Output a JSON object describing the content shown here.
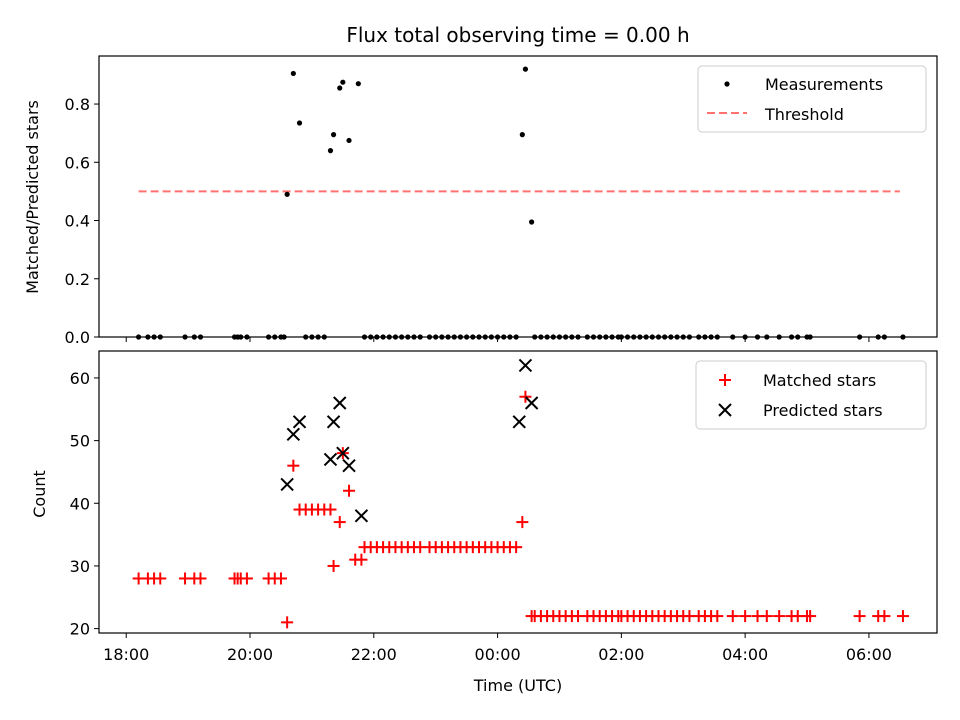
{
  "chart_data": [
    {
      "type": "scatter",
      "title": "Flux total observing time = 0.00 h",
      "ylabel": "Matched/Predicted stars",
      "xlabel": "",
      "xlim_hours": [
        17.56,
        31.1
      ],
      "ylim": [
        0,
        0.965
      ],
      "yticks": [
        0.0,
        0.2,
        0.4,
        0.6,
        0.8
      ],
      "ytick_labels": [
        "0.0",
        "0.2",
        "0.4",
        "0.6",
        "0.8"
      ],
      "legend_position": "top-right",
      "series": [
        {
          "name": "Measurements",
          "marker": "dot",
          "color": "#000000",
          "x": [
            18.2,
            18.35,
            18.45,
            18.55,
            18.95,
            19.1,
            19.2,
            19.75,
            19.8,
            19.85,
            19.95,
            20.3,
            20.4,
            20.5,
            20.55,
            20.6,
            20.7,
            20.8,
            20.9,
            21.0,
            21.1,
            21.2,
            21.3,
            21.35,
            21.45,
            21.5,
            21.6,
            21.75,
            21.85,
            21.95,
            22.05,
            22.15,
            22.25,
            22.35,
            22.45,
            22.55,
            22.65,
            22.75,
            22.9,
            23.0,
            23.1,
            23.2,
            23.3,
            23.4,
            23.5,
            23.6,
            23.7,
            23.8,
            23.9,
            24.0,
            24.1,
            24.2,
            24.3,
            24.4,
            24.45,
            24.55,
            24.6,
            24.7,
            24.8,
            24.9,
            25.0,
            25.1,
            25.2,
            25.3,
            25.45,
            25.55,
            25.65,
            25.75,
            25.85,
            25.95,
            26.0,
            26.1,
            26.2,
            26.3,
            26.4,
            26.5,
            26.6,
            26.7,
            26.8,
            26.9,
            27.0,
            27.1,
            27.25,
            27.35,
            27.45,
            27.55,
            27.8,
            28.0,
            28.2,
            28.35,
            28.55,
            28.75,
            28.85,
            29.0,
            29.05,
            29.85,
            30.15,
            30.25,
            30.55
          ],
          "y": [
            0,
            0,
            0,
            0,
            0,
            0,
            0,
            0,
            0,
            0,
            0,
            0,
            0,
            0,
            0,
            0.49,
            0.905,
            0.735,
            0,
            0,
            0,
            0,
            0.64,
            0.695,
            0.855,
            0.875,
            0.675,
            0.87,
            0,
            0,
            0,
            0,
            0,
            0,
            0,
            0,
            0,
            0,
            0,
            0,
            0,
            0,
            0,
            0,
            0,
            0,
            0,
            0,
            0,
            0,
            0,
            0,
            0,
            0.695,
            0.92,
            0.395,
            0,
            0,
            0,
            0,
            0,
            0,
            0,
            0,
            0,
            0,
            0,
            0,
            0,
            0,
            0,
            0,
            0,
            0,
            0,
            0,
            0,
            0,
            0,
            0,
            0,
            0,
            0,
            0,
            0,
            0,
            0,
            0,
            0,
            0,
            0,
            0,
            0,
            0,
            0,
            0,
            0,
            0,
            0
          ]
        },
        {
          "name": "Threshold",
          "marker": "dashed-line",
          "color": "#ff7070",
          "x": [
            18.2,
            30.5
          ],
          "y": [
            0.5,
            0.5
          ]
        }
      ]
    },
    {
      "type": "scatter",
      "title": "",
      "ylabel": "Count",
      "xlabel": "Time (UTC)",
      "xlim_hours": [
        17.56,
        31.1
      ],
      "ylim": [
        19.3,
        64.3
      ],
      "yticks": [
        20,
        30,
        40,
        50,
        60
      ],
      "ytick_labels": [
        "20",
        "30",
        "40",
        "50",
        "60"
      ],
      "xticks_hours": [
        18,
        20,
        22,
        24,
        26,
        28,
        30
      ],
      "xtick_labels": [
        "18:00",
        "20:00",
        "22:00",
        "00:00",
        "02:00",
        "04:00",
        "06:00"
      ],
      "legend_position": "top-right",
      "series": [
        {
          "name": "Matched stars",
          "marker": "plus",
          "color": "#ff0000",
          "x": [
            18.2,
            18.35,
            18.45,
            18.55,
            18.95,
            19.1,
            19.2,
            19.75,
            19.8,
            19.85,
            19.95,
            20.3,
            20.4,
            20.5,
            20.6,
            20.7,
            20.8,
            20.9,
            21.0,
            21.1,
            21.2,
            21.3,
            21.35,
            21.45,
            21.5,
            21.6,
            21.7,
            21.8,
            21.85,
            21.95,
            22.05,
            22.15,
            22.25,
            22.35,
            22.45,
            22.55,
            22.65,
            22.75,
            22.9,
            23.0,
            23.1,
            23.2,
            23.3,
            23.4,
            23.5,
            23.6,
            23.7,
            23.8,
            23.9,
            24.0,
            24.1,
            24.2,
            24.3,
            24.4,
            24.45,
            24.55,
            24.6,
            24.7,
            24.8,
            24.9,
            25.0,
            25.1,
            25.2,
            25.3,
            25.45,
            25.55,
            25.65,
            25.75,
            25.85,
            25.95,
            26.0,
            26.1,
            26.2,
            26.3,
            26.4,
            26.5,
            26.6,
            26.7,
            26.8,
            26.9,
            27.0,
            27.1,
            27.25,
            27.35,
            27.45,
            27.55,
            27.8,
            28.0,
            28.2,
            28.35,
            28.55,
            28.75,
            28.85,
            29.0,
            29.05,
            29.85,
            30.15,
            30.25,
            30.55
          ],
          "y": [
            28,
            28,
            28,
            28,
            28,
            28,
            28,
            28,
            28,
            28,
            28,
            28,
            28,
            28,
            21,
            46,
            39,
            39,
            39,
            39,
            39,
            39,
            30,
            37,
            48,
            42,
            31,
            31,
            33,
            33,
            33,
            33,
            33,
            33,
            33,
            33,
            33,
            33,
            33,
            33,
            33,
            33,
            33,
            33,
            33,
            33,
            33,
            33,
            33,
            33,
            33,
            33,
            33,
            37,
            57,
            22,
            22,
            22,
            22,
            22,
            22,
            22,
            22,
            22,
            22,
            22,
            22,
            22,
            22,
            22,
            22,
            22,
            22,
            22,
            22,
            22,
            22,
            22,
            22,
            22,
            22,
            22,
            22,
            22,
            22,
            22,
            22,
            22,
            22,
            22,
            22,
            22,
            22,
            22,
            22,
            22,
            22,
            22,
            22
          ]
        },
        {
          "name": "Predicted stars",
          "marker": "x",
          "color": "#000000",
          "x": [
            20.6,
            20.7,
            20.8,
            21.3,
            21.35,
            21.45,
            21.5,
            21.6,
            21.8,
            24.35,
            24.45,
            24.55
          ],
          "y": [
            43,
            51,
            53,
            47,
            53,
            56,
            48,
            46,
            38,
            53,
            62,
            56
          ]
        }
      ]
    }
  ]
}
